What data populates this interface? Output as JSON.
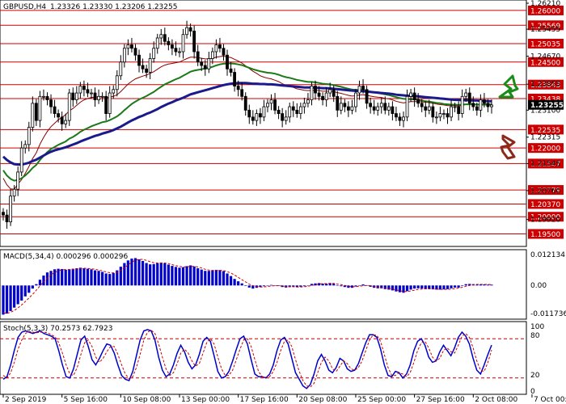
{
  "header": {
    "symbol": "GBPUSD,H4",
    "ohlc": "1.23326 1.23330 1.23206 1.23255"
  },
  "colors": {
    "level_line": "#cc0000",
    "level_label_bg": "#cc0000",
    "price_label_bg": "#000000",
    "candle": "#000000",
    "ma_fast": "#8b0000",
    "ma_mid": "#1a7a1a",
    "ma_slow": "#1a1a8c",
    "macd_bar": "#0000cc",
    "macd_signal": "#cc0000",
    "stoch_main": "#0000cc",
    "stoch_signal": "#cc0000",
    "arrow_up": "#1a8c1a",
    "arrow_down": "#8b2a1a"
  },
  "chart_data": [
    {
      "type": "candlestick",
      "title": "GBPUSD,H4",
      "ylim": [
        1.1923,
        1.2621
      ],
      "y_tick_labels": [
        "1.26210",
        "1.25455",
        "1.24670",
        "1.23855",
        "1.23100",
        "1.22315",
        "1.21545",
        "1.20760",
        "1.19920"
      ],
      "price_levels": [
        1.26,
        1.25569,
        1.25035,
        1.245,
        1.23843,
        1.23438,
        1.22535,
        1.22,
        1.21547,
        1.20779,
        1.2037,
        1.2,
        1.195
      ],
      "price_level_labels": [
        "1.26000",
        "1.25569",
        "1.25035",
        "1.24500",
        "1.23843",
        "1.23438",
        "1.22535",
        "1.22000",
        "1.21547",
        "1.20779",
        "1.20370",
        "1.20000",
        "1.19500"
      ],
      "current_price": 1.23255,
      "current_price_label": "1.23255",
      "x_labels": [
        "2 Sep 2019",
        "5 Sep 16:00",
        "10 Sep 08:00",
        "13 Sep 00:00",
        "17 Sep 16:00",
        "20 Sep 08:00",
        "25 Sep 00:00",
        "27 Sep 16:00",
        "2 Oct 08:00",
        "7 Oct 00:00"
      ],
      "x_label_index": [
        0,
        16,
        32,
        48,
        64,
        80,
        96,
        112,
        128,
        144
      ],
      "close": [
        1.2005,
        1.1985,
        1.206,
        1.208,
        1.213,
        1.22,
        1.221,
        1.226,
        1.233,
        1.228,
        1.235,
        1.235,
        1.234,
        1.232,
        1.23,
        1.229,
        1.227,
        1.228,
        1.236,
        1.234,
        1.236,
        1.238,
        1.237,
        1.236,
        1.236,
        1.234,
        1.235,
        1.235,
        1.23,
        1.236,
        1.237,
        1.241,
        1.245,
        1.249,
        1.25,
        1.249,
        1.247,
        1.244,
        1.243,
        1.242,
        1.246,
        1.249,
        1.252,
        1.253,
        1.251,
        1.25,
        1.249,
        1.248,
        1.248,
        1.253,
        1.255,
        1.254,
        1.248,
        1.245,
        1.244,
        1.243,
        1.246,
        1.248,
        1.25,
        1.249,
        1.247,
        1.243,
        1.242,
        1.238,
        1.237,
        1.235,
        1.231,
        1.229,
        1.228,
        1.23,
        1.229,
        1.232,
        1.233,
        1.234,
        1.231,
        1.23,
        1.228,
        1.229,
        1.232,
        1.231,
        1.23,
        1.232,
        1.233,
        1.234,
        1.238,
        1.236,
        1.235,
        1.234,
        1.236,
        1.237,
        1.235,
        1.231,
        1.233,
        1.232,
        1.231,
        1.232,
        1.236,
        1.238,
        1.237,
        1.233,
        1.232,
        1.231,
        1.232,
        1.233,
        1.231,
        1.232,
        1.23,
        1.229,
        1.228,
        1.229,
        1.235,
        1.236,
        1.234,
        1.233,
        1.232,
        1.231,
        1.232,
        1.229,
        1.229,
        1.23,
        1.23,
        1.229,
        1.232,
        1.232,
        1.23,
        1.235,
        1.236,
        1.233,
        1.232,
        1.231,
        1.234,
        1.233,
        1.232,
        1.2325
      ],
      "ma_fast": [
        1.2112,
        1.2093,
        1.2081,
        1.208,
        1.2095,
        1.2108,
        1.2126,
        1.2146,
        1.2169,
        1.2186,
        1.2211,
        1.2231,
        1.2248,
        1.2262,
        1.2272,
        1.2282,
        1.2289,
        1.2297,
        1.2308,
        1.2315,
        1.2324,
        1.2333,
        1.234,
        1.2344,
        1.2347,
        1.2348,
        1.2349,
        1.235,
        1.2346,
        1.2348,
        1.235,
        1.2355,
        1.2364,
        1.2375,
        1.2386,
        1.2394,
        1.2401,
        1.2405,
        1.2409,
        1.2412,
        1.2417,
        1.2422,
        1.2429,
        1.2436,
        1.2441,
        1.2444,
        1.2446,
        1.2448,
        1.245,
        1.2455,
        1.246,
        1.2464,
        1.2464,
        1.2463,
        1.2461,
        1.2459,
        1.2459,
        1.2461,
        1.2464,
        1.2466,
        1.2467,
        1.2465,
        1.2463,
        1.2458,
        1.2453,
        1.2447,
        1.2439,
        1.2431,
        1.2423,
        1.2417,
        1.241,
        1.2406,
        1.2403,
        1.2401,
        1.2397,
        1.2393,
        1.2387,
        1.2382,
        1.238,
        1.2376,
        1.2372,
        1.237,
        1.2368,
        1.2367,
        1.2368,
        1.2368,
        1.2367,
        1.2365,
        1.2365,
        1.2365,
        1.2364,
        1.2361,
        1.2359,
        1.2356,
        1.2353,
        1.2351,
        1.2352,
        1.2354,
        1.2355,
        1.2353,
        1.2351,
        1.2349,
        1.2348,
        1.2347,
        1.2344,
        1.2343,
        1.234,
        1.2336,
        1.2333,
        1.2331,
        1.2333,
        1.2335,
        1.2335,
        1.2335,
        1.2334,
        1.2333,
        1.2332,
        1.233,
        1.2328,
        1.2326,
        1.2325,
        1.2323,
        1.2323,
        1.2323,
        1.2322,
        1.2324,
        1.2327,
        1.2327,
        1.2327,
        1.2326,
        1.2327,
        1.2328,
        1.2328,
        1.2328
      ],
      "ma_mid": [
        1.2135,
        1.212,
        1.211,
        1.2105,
        1.2107,
        1.2112,
        1.212,
        1.213,
        1.2142,
        1.2151,
        1.2165,
        1.2177,
        1.2188,
        1.2197,
        1.2203,
        1.2209,
        1.2214,
        1.2219,
        1.2227,
        1.2232,
        1.2239,
        1.2247,
        1.2253,
        1.2258,
        1.2263,
        1.2267,
        1.2271,
        1.2275,
        1.2277,
        1.2281,
        1.2286,
        1.2292,
        1.23,
        1.231,
        1.2319,
        1.2328,
        1.2335,
        1.2341,
        1.2346,
        1.2351,
        1.2357,
        1.2363,
        1.2371,
        1.2378,
        1.2385,
        1.239,
        1.2395,
        1.24,
        1.2404,
        1.241,
        1.2416,
        1.2422,
        1.2425,
        1.2427,
        1.2429,
        1.2431,
        1.2433,
        1.2436,
        1.244,
        1.2443,
        1.2445,
        1.2446,
        1.2446,
        1.2445,
        1.2443,
        1.2441,
        1.2437,
        1.2433,
        1.2429,
        1.2426,
        1.2423,
        1.2421,
        1.2419,
        1.2418,
        1.2416,
        1.2413,
        1.2409,
        1.2406,
        1.2404,
        1.2401,
        1.2398,
        1.2396,
        1.2394,
        1.2392,
        1.2392,
        1.2391,
        1.2389,
        1.2387,
        1.2386,
        1.2385,
        1.2383,
        1.238,
        1.2378,
        1.2375,
        1.2372,
        1.237,
        1.2369,
        1.2369,
        1.2368,
        1.2366,
        1.2364,
        1.2362,
        1.236,
        1.2358,
        1.2356,
        1.2354,
        1.2351,
        1.2348,
        1.2345,
        1.2343,
        1.2342,
        1.2342,
        1.2341,
        1.234,
        1.2338,
        1.2336,
        1.2335,
        1.2333,
        1.2331,
        1.233,
        1.2328,
        1.2327,
        1.2326,
        1.2326,
        1.2325,
        1.2326,
        1.2327,
        1.2327,
        1.2327,
        1.2326,
        1.2326,
        1.2326,
        1.2326,
        1.2326
      ],
      "ma_slow": [
        1.2175,
        1.2165,
        1.2158,
        1.2153,
        1.2152,
        1.2152,
        1.2154,
        1.2157,
        1.2162,
        1.2166,
        1.2172,
        1.2178,
        1.2184,
        1.2189,
        1.2193,
        1.2196,
        1.2199,
        1.2202,
        1.2206,
        1.221,
        1.2214,
        1.2219,
        1.2223,
        1.2227,
        1.2231,
        1.2235,
        1.2238,
        1.2242,
        1.2245,
        1.2248,
        1.2252,
        1.2257,
        1.2262,
        1.2268,
        1.2274,
        1.228,
        1.2285,
        1.229,
        1.2294,
        1.2299,
        1.2303,
        1.2308,
        1.2313,
        1.2319,
        1.2324,
        1.2329,
        1.2333,
        1.2338,
        1.2342,
        1.2346,
        1.2351,
        1.2356,
        1.2359,
        1.2362,
        1.2365,
        1.2368,
        1.2371,
        1.2374,
        1.2377,
        1.238,
        1.2383,
        1.2385,
        1.2387,
        1.2388,
        1.2389,
        1.2389,
        1.2389,
        1.2388,
        1.2387,
        1.2387,
        1.2386,
        1.2386,
        1.2385,
        1.2385,
        1.2384,
        1.2383,
        1.2382,
        1.2381,
        1.238,
        1.2379,
        1.2378,
        1.2377,
        1.2376,
        1.2376,
        1.2376,
        1.2375,
        1.2375,
        1.2374,
        1.2374,
        1.2373,
        1.2372,
        1.2371,
        1.237,
        1.2369,
        1.2368,
        1.2367,
        1.2366,
        1.2366,
        1.2365,
        1.2364,
        1.2363,
        1.2362,
        1.2361,
        1.236,
        1.2359,
        1.2358,
        1.2357,
        1.2355,
        1.2354,
        1.2353,
        1.2352,
        1.2352,
        1.2351,
        1.235,
        1.2349,
        1.2348,
        1.2347,
        1.2346,
        1.2345,
        1.2344,
        1.2343,
        1.2342,
        1.2341,
        1.234,
        1.234,
        1.2339,
        1.2339,
        1.2339,
        1.2338,
        1.2338,
        1.2337,
        1.2337,
        1.2336,
        1.2336
      ]
    },
    {
      "type": "bar",
      "title": "MACD(5,34,4) 0.000296 0.000296",
      "ylim": [
        -0.012,
        0.0128
      ],
      "y_tick_labels": [
        "0.012134",
        "0.00",
        "-0.011736"
      ],
      "values": [
        -0.0112,
        -0.0108,
        -0.0098,
        -0.0085,
        -0.0072,
        -0.0058,
        -0.0042,
        -0.0028,
        -0.0012,
        0.0005,
        0.0022,
        0.0038,
        0.005,
        0.0056,
        0.0062,
        0.0064,
        0.0063,
        0.006,
        0.0062,
        0.0064,
        0.0066,
        0.0068,
        0.0066,
        0.0064,
        0.0062,
        0.0058,
        0.0056,
        0.0052,
        0.0046,
        0.0044,
        0.0048,
        0.0058,
        0.0072,
        0.0086,
        0.0096,
        0.0103,
        0.0105,
        0.01,
        0.0094,
        0.0086,
        0.0081,
        0.0082,
        0.0085,
        0.0088,
        0.0085,
        0.008,
        0.0075,
        0.0071,
        0.0068,
        0.007,
        0.0074,
        0.0077,
        0.0073,
        0.0066,
        0.0061,
        0.0056,
        0.0056,
        0.0058,
        0.006,
        0.0059,
        0.0055,
        0.0046,
        0.0036,
        0.0025,
        0.0016,
        0.0008,
        -0.0002,
        -0.0008,
        -0.0012,
        -0.0009,
        -0.0006,
        -0.0003,
        0.0,
        0.0002,
        0.0,
        -0.0002,
        -0.0006,
        -0.0008,
        -0.0006,
        -0.0004,
        -0.0006,
        -0.0005,
        -0.0003,
        -0.0001,
        0.0006,
        0.0008,
        0.0009,
        0.0007,
        0.0007,
        0.0009,
        0.0007,
        0.0,
        -0.0003,
        -0.0006,
        -0.0009,
        -0.0009,
        -0.0004,
        0.0001,
        0.0004,
        0.0,
        -0.0005,
        -0.0009,
        -0.0011,
        -0.0011,
        -0.0014,
        -0.0016,
        -0.0019,
        -0.0023,
        -0.0026,
        -0.0028,
        -0.0022,
        -0.0016,
        -0.0012,
        -0.0011,
        -0.0012,
        -0.0014,
        -0.0013,
        -0.0015,
        -0.0016,
        -0.0016,
        -0.0015,
        -0.0014,
        -0.0011,
        -0.0008,
        -0.0008,
        -0.0002,
        0.0005,
        0.0006,
        0.0005,
        0.0003,
        0.0004,
        0.0004,
        0.0003,
        0.000296
      ],
      "signal": [
        -0.0105,
        -0.0107,
        -0.0103,
        -0.0096,
        -0.0086,
        -0.0075,
        -0.0062,
        -0.0048,
        -0.0034,
        -0.0018,
        -0.0002,
        0.0014,
        0.0028,
        0.004,
        0.005,
        0.0056,
        0.006,
        0.0061,
        0.0061,
        0.0062,
        0.0063,
        0.0065,
        0.0066,
        0.0065,
        0.0064,
        0.0062,
        0.0059,
        0.0056,
        0.0052,
        0.0049,
        0.0048,
        0.0051,
        0.0058,
        0.0068,
        0.0079,
        0.0089,
        0.0097,
        0.01,
        0.01,
        0.0096,
        0.0091,
        0.0087,
        0.0086,
        0.0086,
        0.0086,
        0.0084,
        0.008,
        0.0076,
        0.0073,
        0.0071,
        0.0072,
        0.0073,
        0.0073,
        0.0071,
        0.0067,
        0.0062,
        0.0059,
        0.0058,
        0.0058,
        0.0058,
        0.0057,
        0.0053,
        0.0048,
        0.004,
        0.0031,
        0.0022,
        0.0014,
        0.0005,
        -0.0001,
        -0.0004,
        -0.0006,
        -0.0006,
        -0.0004,
        -0.0002,
        -0.0001,
        -0.0001,
        -0.0002,
        -0.0004,
        -0.0005,
        -0.0005,
        -0.0006,
        -0.0006,
        -0.0005,
        -0.0003,
        0.0,
        0.0003,
        0.0005,
        0.0007,
        0.0007,
        0.0008,
        0.0008,
        0.0005,
        0.0003,
        0.0,
        -0.0003,
        -0.0005,
        -0.0005,
        -0.0003,
        -0.0001,
        0.0,
        -0.0001,
        -0.0004,
        -0.0006,
        -0.0008,
        -0.0009,
        -0.0011,
        -0.0014,
        -0.0017,
        -0.002,
        -0.0023,
        -0.0023,
        -0.0021,
        -0.0018,
        -0.0015,
        -0.0014,
        -0.0013,
        -0.0013,
        -0.0013,
        -0.0014,
        -0.0015,
        -0.0015,
        -0.0015,
        -0.0014,
        -0.0012,
        -0.001,
        -0.0007,
        -0.0003,
        0.0,
        0.0003,
        0.0004,
        0.0004,
        0.0004,
        0.0004,
        0.000296
      ]
    },
    {
      "type": "line",
      "title": "Stoch(5,3,3) 70.2573 62.7923",
      "ylim": [
        0,
        100
      ],
      "y_tick_labels": [
        "100",
        "80",
        "20",
        "0"
      ],
      "levels": [
        20,
        80
      ],
      "series": [
        {
          "name": "70.2573",
          "values": [
            18,
            22,
            40,
            62,
            82,
            90,
            92,
            90,
            88,
            90,
            92,
            88,
            86,
            84,
            80,
            62,
            40,
            22,
            20,
            34,
            56,
            78,
            84,
            68,
            48,
            40,
            50,
            62,
            72,
            70,
            58,
            40,
            24,
            18,
            16,
            30,
            54,
            78,
            92,
            94,
            92,
            78,
            52,
            32,
            22,
            26,
            40,
            58,
            70,
            60,
            44,
            34,
            40,
            56,
            76,
            82,
            76,
            54,
            30,
            20,
            22,
            30,
            46,
            64,
            80,
            84,
            72,
            48,
            26,
            22,
            22,
            20,
            26,
            40,
            62,
            78,
            82,
            72,
            50,
            28,
            18,
            8,
            4,
            10,
            26,
            46,
            56,
            46,
            32,
            28,
            36,
            50,
            46,
            34,
            30,
            32,
            42,
            58,
            74,
            86,
            86,
            82,
            64,
            40,
            24,
            22,
            30,
            28,
            20,
            26,
            40,
            62,
            76,
            80,
            70,
            52,
            44,
            46,
            60,
            70,
            62,
            54,
            66,
            82,
            90,
            84,
            72,
            50,
            32,
            26,
            40,
            56,
            70.2573
          ]
        },
        {
          "name": "62.7923",
          "values": [
            24,
            20,
            28,
            44,
            64,
            78,
            88,
            91,
            90,
            89,
            90,
            90,
            89,
            86,
            83,
            74,
            58,
            40,
            26,
            24,
            36,
            56,
            74,
            78,
            68,
            52,
            44,
            50,
            60,
            68,
            68,
            56,
            40,
            26,
            19,
            22,
            36,
            56,
            78,
            90,
            93,
            88,
            72,
            52,
            34,
            24,
            28,
            42,
            58,
            64,
            58,
            46,
            38,
            42,
            58,
            74,
            80,
            72,
            52,
            34,
            24,
            24,
            32,
            48,
            64,
            78,
            80,
            68,
            48,
            30,
            22,
            21,
            22,
            30,
            44,
            62,
            76,
            78,
            68,
            48,
            30,
            16,
            8,
            6,
            12,
            28,
            44,
            52,
            46,
            34,
            30,
            38,
            46,
            42,
            34,
            32,
            36,
            46,
            62,
            78,
            86,
            85,
            76,
            56,
            36,
            24,
            24,
            28,
            26,
            22,
            28,
            44,
            62,
            74,
            76,
            66,
            52,
            46,
            50,
            62,
            66,
            60,
            58,
            70,
            84,
            88,
            82,
            66,
            46,
            32,
            30,
            44,
            62.7923
          ]
        }
      ]
    }
  ],
  "axis": {
    "macd_labels": [
      "0.012134",
      "0.00",
      "-0.011736"
    ],
    "stoch_labels": [
      "100",
      "80",
      "20",
      "0"
    ]
  }
}
